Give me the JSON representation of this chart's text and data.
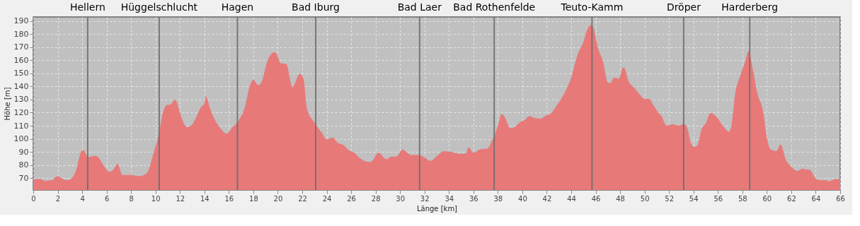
{
  "chart_data": {
    "type": "area",
    "xlabel": "Länge [km]",
    "ylabel": "Höhe [m]",
    "x": [
      0,
      0.5,
      1,
      1.5,
      2,
      2.3,
      2.7,
      3.0,
      3.5,
      3.9,
      4.1,
      4.5,
      5.0,
      5.3,
      5.8,
      6.2,
      6.5,
      6.9,
      7.3,
      8.0,
      8.7,
      9.3,
      9.8,
      10.3,
      10.6,
      11.0,
      11.2,
      11.6,
      12.0,
      12.3,
      12.6,
      13.0,
      13.4,
      13.7,
      14.0,
      14.1,
      14.5,
      15.0,
      15.4,
      15.8,
      16.3,
      16.8,
      17.3,
      17.7,
      18.0,
      18.4,
      18.7,
      19.1,
      19.7,
      19.9,
      20.2,
      20.7,
      21.2,
      21.8,
      22.1,
      22.4,
      22.9,
      23.1,
      23.6,
      24.0,
      24.5,
      24.9,
      25.3,
      25.8,
      26.2,
      26.7,
      27.5,
      27.8,
      28.2,
      28.9,
      29.3,
      29.7,
      30.2,
      30.9,
      31.5,
      31.9,
      32.5,
      33.0,
      33.6,
      34.3,
      34.8,
      35.4,
      35.6,
      36.0,
      36.6,
      37.1,
      37.6,
      38.0,
      38.3,
      38.6,
      39.0,
      39.3,
      39.8,
      40.2,
      40.6,
      41.0,
      41.5,
      41.9,
      42.3,
      42.8,
      43.5,
      44.0,
      44.5,
      45.0,
      45.3,
      45.6,
      45.8,
      46.2,
      46.6,
      47.0,
      47.2,
      47.5,
      47.9,
      48.2,
      48.3,
      48.7,
      49.2,
      49.6,
      50.0,
      50.4,
      50.7,
      51.1,
      51.4,
      51.8,
      52.3,
      52.8,
      53.2,
      53.5,
      53.8,
      54.1,
      54.3,
      54.7,
      55.0,
      55.4,
      55.6,
      56.0,
      56.4,
      56.9,
      57.1,
      57.4,
      57.8,
      58.2,
      58.5,
      58.9,
      59.2,
      59.7,
      60.0,
      60.3,
      60.8,
      61.1,
      61.6,
      62.0,
      62.5,
      62.9,
      63.2,
      63.5,
      64.0,
      64.3,
      64.8,
      65.1,
      65.6,
      66.0
    ],
    "series": [
      {
        "color": "#e87979",
        "values": [
          69,
          69.5,
          68,
          68.5,
          71.5,
          70,
          68.5,
          69,
          76,
          90,
          91.5,
          86,
          87,
          86,
          79,
          75,
          76,
          81,
          72.5,
          72.5,
          71.5,
          74,
          88,
          105,
          120,
          126,
          126,
          130,
          120,
          112,
          109,
          111,
          118,
          124,
          127,
          132.5,
          122,
          112,
          107,
          104,
          109,
          114,
          124,
          140,
          145,
          141,
          144,
          158,
          166,
          165,
          158,
          157,
          139.5,
          149.6,
          145.7,
          122.5,
          113.6,
          111,
          104.6,
          99.6,
          101,
          97,
          95.7,
          91.3,
          89.8,
          85.4,
          82.3,
          84,
          89.5,
          84.5,
          86.4,
          86.4,
          91.8,
          87.7,
          87.7,
          86.4,
          83.2,
          86.8,
          90.7,
          89.8,
          88.6,
          88.9,
          93.6,
          89.5,
          92.1,
          92.5,
          100.2,
          110,
          119,
          116,
          108.2,
          108.6,
          112.7,
          114.5,
          117.5,
          115.9,
          115.4,
          117.7,
          119,
          125.2,
          135.9,
          146.6,
          163.6,
          174,
          183,
          186.8,
          185,
          169,
          159,
          143,
          142.5,
          146.6,
          146,
          153.8,
          154.6,
          144,
          138.6,
          134,
          130.5,
          130.5,
          126,
          120.4,
          117,
          110,
          111.3,
          110,
          111.4,
          108.2,
          96.6,
          93.9,
          94.8,
          108.2,
          111.8,
          119.8,
          119,
          115.4,
          110,
          105.5,
          110,
          134,
          147.5,
          158.2,
          166.8,
          151,
          135.9,
          120.7,
          101,
          92.1,
          90.7,
          95.7,
          83.2,
          78.8,
          75.5,
          77.3,
          76.6,
          76.4,
          69.8,
          68.6,
          68.6,
          67.7,
          69.3,
          69.5
        ]
      }
    ],
    "xlim": [
      0,
      66
    ],
    "ylim": [
      61,
      193
    ],
    "xticks": [
      0,
      2,
      4,
      6,
      8,
      10,
      12,
      14,
      16,
      18,
      20,
      22,
      24,
      26,
      28,
      30,
      32,
      34,
      36,
      38,
      40,
      42,
      44,
      46,
      48,
      50,
      52,
      54,
      56,
      58,
      60,
      62,
      64,
      66
    ],
    "yticks": [
      70,
      80,
      90,
      100,
      110,
      120,
      130,
      140,
      150,
      160,
      170,
      180,
      190
    ],
    "grid": true,
    "ref_lines": [
      {
        "axis": "x",
        "value": 4.45,
        "label": "Hellern",
        "color": "#6b6b6b"
      },
      {
        "axis": "x",
        "value": 10.3,
        "label": "Hüggelschlucht",
        "color": "#6b6b6b"
      },
      {
        "axis": "x",
        "value": 16.7,
        "label": "Hagen",
        "color": "#6b6b6b"
      },
      {
        "axis": "x",
        "value": 23.1,
        "label": "Bad Iburg",
        "color": "#6b6b6b"
      },
      {
        "axis": "x",
        "value": 31.6,
        "label": "Bad Laer",
        "color": "#6b6b6b"
      },
      {
        "axis": "x",
        "value": 37.7,
        "label": "Bad Rothenfelde",
        "color": "#6b6b6b"
      },
      {
        "axis": "x",
        "value": 45.7,
        "label": "Teuto-Kamm",
        "color": "#6b6b6b"
      },
      {
        "axis": "x",
        "value": 53.2,
        "label": "Dröper",
        "color": "#6b6b6b"
      },
      {
        "axis": "x",
        "value": 58.6,
        "label": "Harderberg",
        "color": "#6b6b6b"
      }
    ]
  }
}
